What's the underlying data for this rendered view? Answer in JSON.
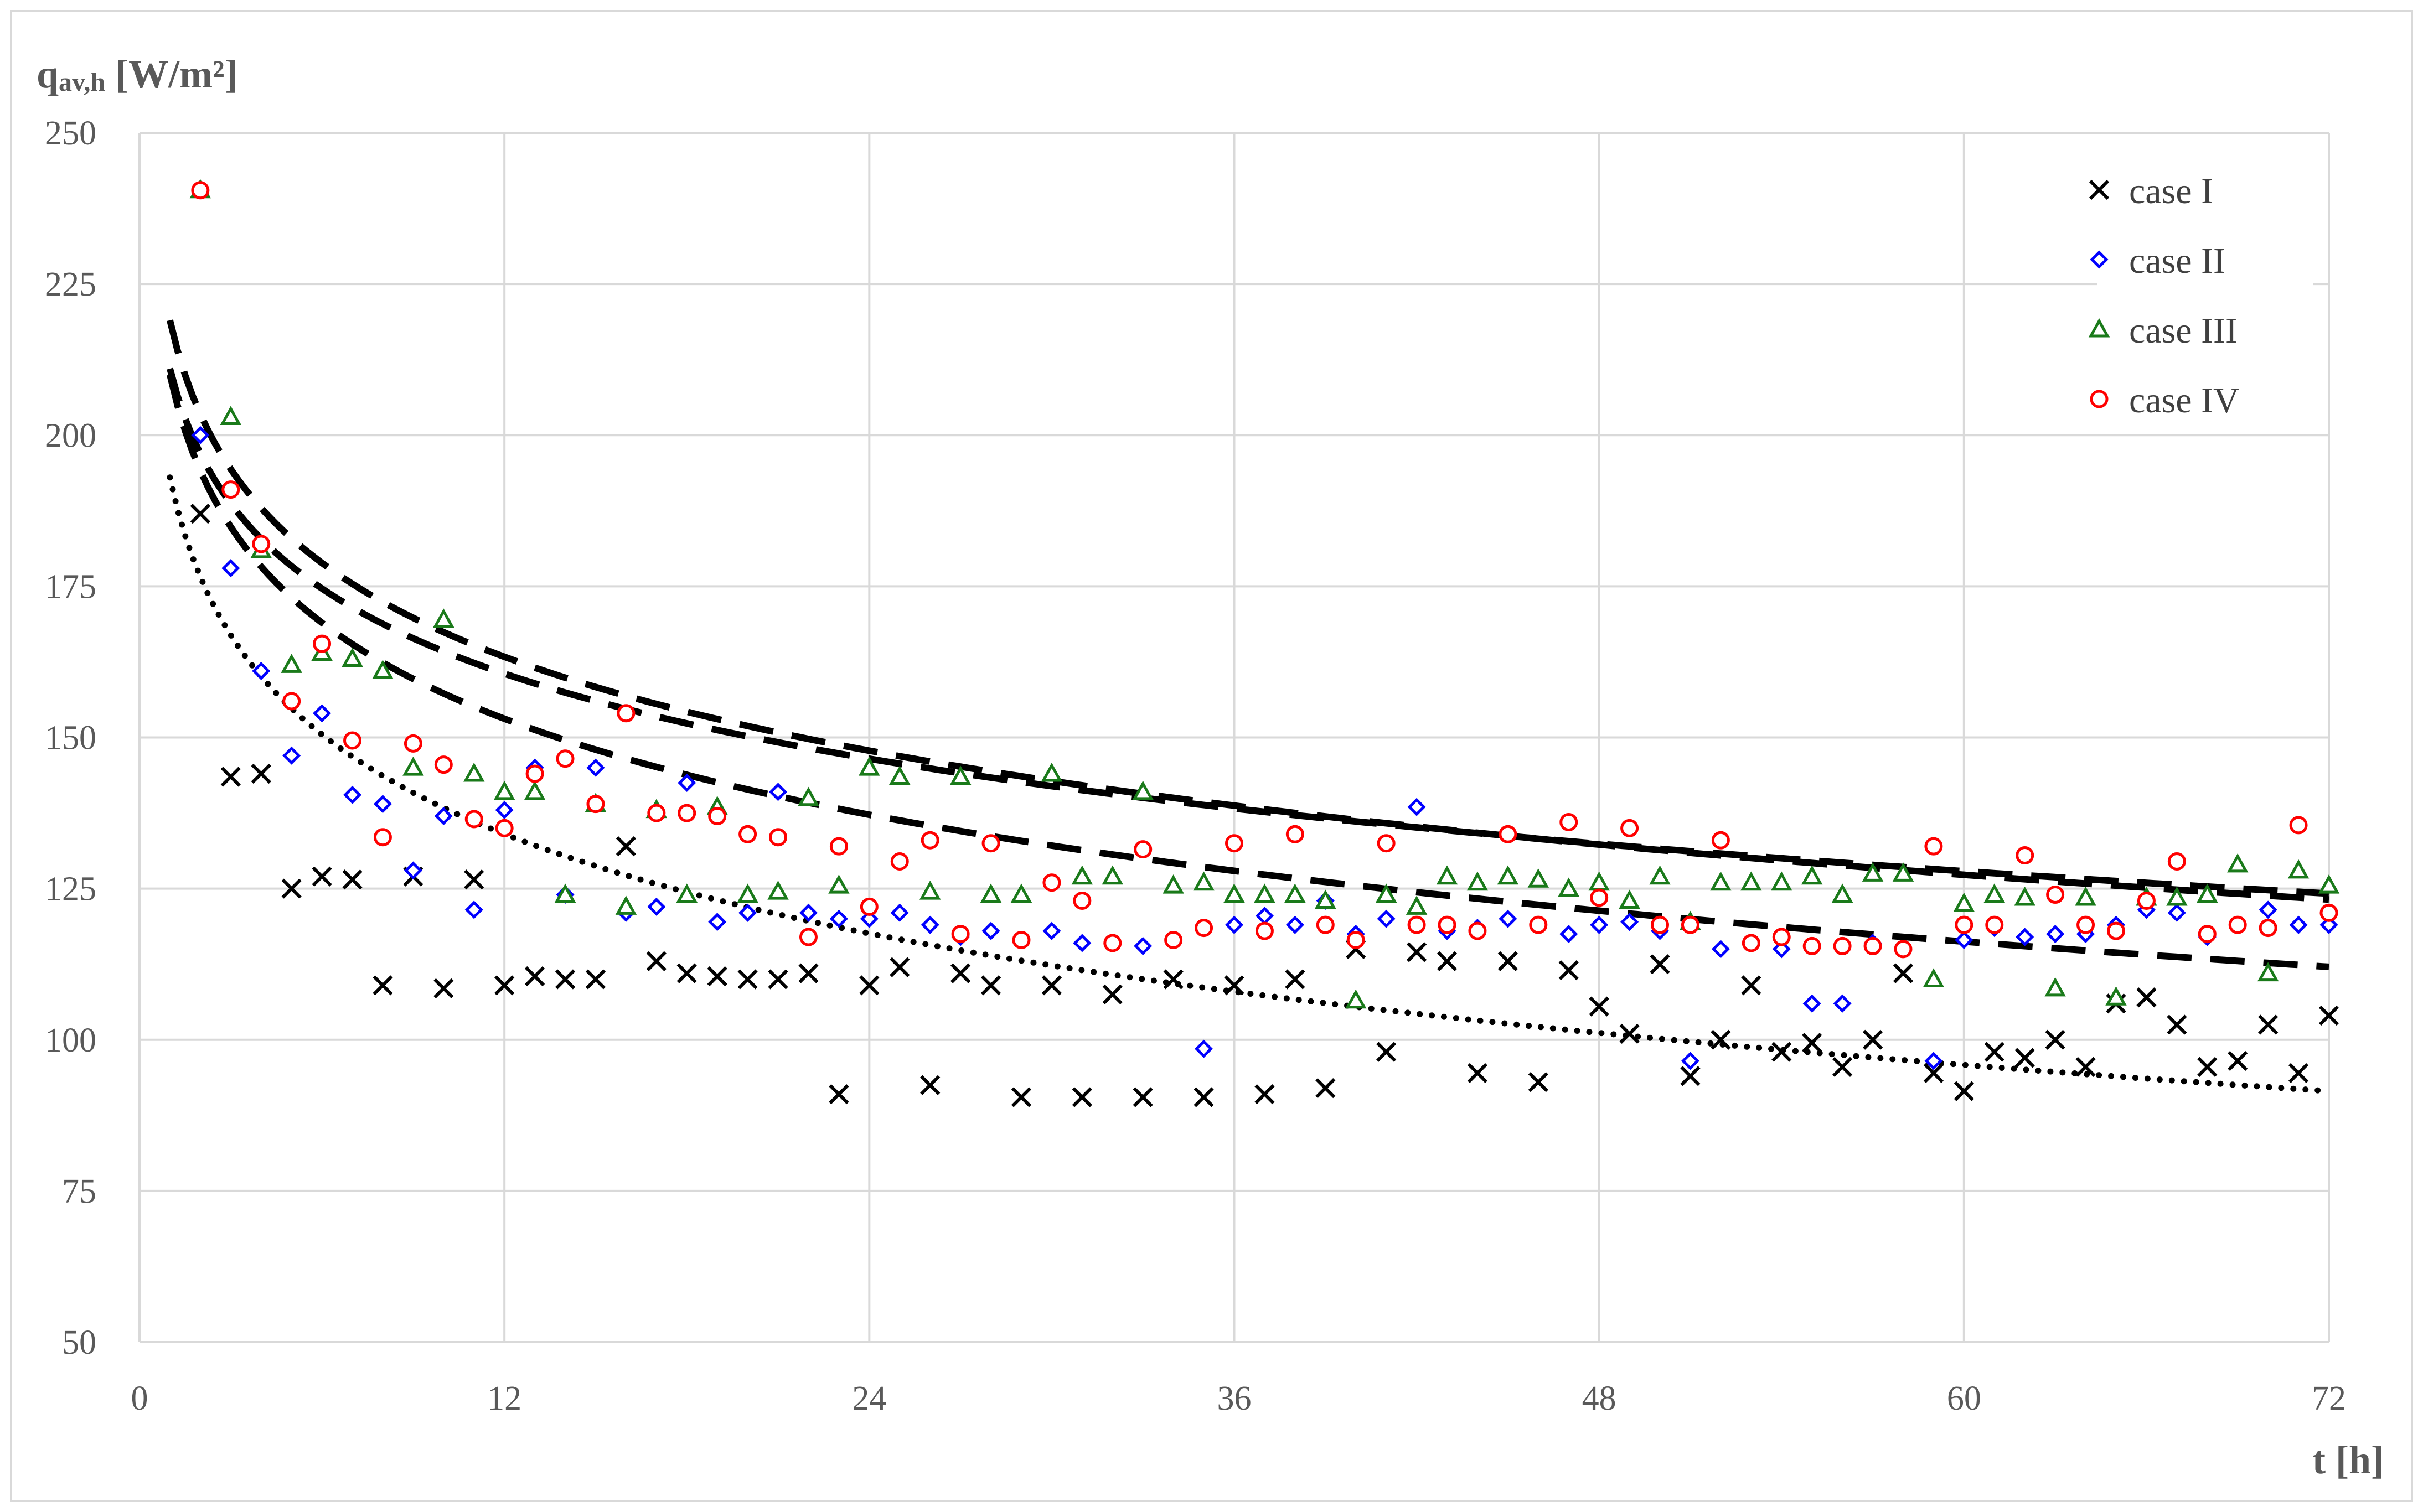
{
  "chart_data": {
    "type": "scatter",
    "title": "",
    "ylabel": {
      "main": "q",
      "sub": "av,h",
      "unit": " [W/m²]"
    },
    "xlabel": "t [h]",
    "xlim": [
      0,
      72
    ],
    "ylim": [
      50,
      250
    ],
    "xticks": [
      0,
      12,
      24,
      36,
      48,
      60,
      72
    ],
    "yticks": [
      50,
      75,
      100,
      125,
      150,
      175,
      200,
      225,
      250
    ],
    "grid": true,
    "legend_position": "top-right",
    "series": [
      {
        "name": "case I",
        "marker": "cross",
        "color": "#000000",
        "points": [
          [
            2,
            187
          ],
          [
            3,
            143.5
          ],
          [
            4,
            144
          ],
          [
            5,
            125
          ],
          [
            6,
            127
          ],
          [
            7,
            126.5
          ],
          [
            8,
            109
          ],
          [
            9,
            127
          ],
          [
            10,
            108.5
          ],
          [
            11,
            126.5
          ],
          [
            12,
            109
          ],
          [
            13,
            110.5
          ],
          [
            14,
            110
          ],
          [
            15,
            110
          ],
          [
            16,
            132
          ],
          [
            17,
            113
          ],
          [
            18,
            111
          ],
          [
            19,
            110.5
          ],
          [
            20,
            110
          ],
          [
            21,
            110
          ],
          [
            22,
            111
          ],
          [
            23,
            91
          ],
          [
            24,
            109
          ],
          [
            25,
            112
          ],
          [
            26,
            92.5
          ],
          [
            27,
            111
          ],
          [
            28,
            109
          ],
          [
            29,
            90.5
          ],
          [
            30,
            109
          ],
          [
            31,
            90.5
          ],
          [
            32,
            107.5
          ],
          [
            33,
            90.5
          ],
          [
            34,
            110
          ],
          [
            35,
            90.5
          ],
          [
            36,
            109
          ],
          [
            37,
            91
          ],
          [
            38,
            110
          ],
          [
            39,
            92
          ],
          [
            40,
            115
          ],
          [
            41,
            98
          ],
          [
            42,
            114.5
          ],
          [
            43,
            113
          ],
          [
            44,
            94.5
          ],
          [
            45,
            113
          ],
          [
            46,
            93
          ],
          [
            47,
            111.5
          ],
          [
            48,
            105.5
          ],
          [
            49,
            101
          ],
          [
            50,
            112.5
          ],
          [
            51,
            94
          ],
          [
            52,
            100
          ],
          [
            53,
            109
          ],
          [
            54,
            98
          ],
          [
            55,
            99.5
          ],
          [
            56,
            95.5
          ],
          [
            57,
            100
          ],
          [
            58,
            111
          ],
          [
            59,
            94.5
          ],
          [
            60,
            91.5
          ],
          [
            61,
            98
          ],
          [
            62,
            97
          ],
          [
            63,
            100
          ],
          [
            64,
            95.5
          ],
          [
            65,
            106
          ],
          [
            66,
            107
          ],
          [
            67,
            102.5
          ],
          [
            68,
            95.5
          ],
          [
            69,
            96.5
          ],
          [
            70,
            102.5
          ],
          [
            71,
            94.5
          ],
          [
            72,
            104
          ]
        ]
      },
      {
        "name": "case II",
        "marker": "diamond",
        "color": "#0000ff",
        "points": [
          [
            2,
            200
          ],
          [
            3,
            178
          ],
          [
            4,
            161
          ],
          [
            5,
            147
          ],
          [
            6,
            154
          ],
          [
            7,
            140.5
          ],
          [
            8,
            139
          ],
          [
            9,
            128
          ],
          [
            10,
            137
          ],
          [
            11,
            121.5
          ],
          [
            12,
            138
          ],
          [
            13,
            145
          ],
          [
            14,
            124
          ],
          [
            15,
            145
          ],
          [
            16,
            121
          ],
          [
            17,
            122
          ],
          [
            18,
            142.5
          ],
          [
            19,
            119.5
          ],
          [
            20,
            121
          ],
          [
            21,
            141
          ],
          [
            22,
            121
          ],
          [
            23,
            120
          ],
          [
            24,
            120
          ],
          [
            25,
            121
          ],
          [
            26,
            119
          ],
          [
            27,
            117
          ],
          [
            28,
            118
          ],
          [
            29,
            116.5
          ],
          [
            30,
            118
          ],
          [
            31,
            116
          ],
          [
            32,
            116
          ],
          [
            33,
            115.5
          ],
          [
            34,
            116.5
          ],
          [
            35,
            98.5
          ],
          [
            36,
            119
          ],
          [
            37,
            120.5
          ],
          [
            38,
            119
          ],
          [
            39,
            123
          ],
          [
            40,
            117.5
          ],
          [
            41,
            120
          ],
          [
            42,
            138.5
          ],
          [
            43,
            118
          ],
          [
            44,
            118.5
          ],
          [
            45,
            120
          ],
          [
            46,
            119
          ],
          [
            47,
            117.5
          ],
          [
            48,
            119
          ],
          [
            49,
            119.5
          ],
          [
            50,
            118
          ],
          [
            51,
            96.5
          ],
          [
            52,
            115
          ],
          [
            53,
            116
          ],
          [
            54,
            115
          ],
          [
            55,
            106
          ],
          [
            56,
            106
          ],
          [
            57,
            116
          ],
          [
            58,
            115
          ],
          [
            59,
            96.5
          ],
          [
            60,
            116.5
          ],
          [
            61,
            118.5
          ],
          [
            62,
            117
          ],
          [
            63,
            117.5
          ],
          [
            64,
            117.5
          ],
          [
            65,
            119
          ],
          [
            66,
            121.5
          ],
          [
            67,
            121
          ],
          [
            68,
            117
          ],
          [
            69,
            119
          ],
          [
            70,
            121.5
          ],
          [
            71,
            119
          ],
          [
            72,
            119
          ]
        ]
      },
      {
        "name": "case III",
        "marker": "triangle",
        "color": "#1a7a1a",
        "points": [
          [
            2,
            240.5
          ],
          [
            3,
            203
          ],
          [
            4,
            181
          ],
          [
            5,
            162
          ],
          [
            6,
            164
          ],
          [
            7,
            163
          ],
          [
            8,
            161
          ],
          [
            9,
            145
          ],
          [
            10,
            169.5
          ],
          [
            11,
            144
          ],
          [
            12,
            141
          ],
          [
            13,
            141
          ],
          [
            14,
            124
          ],
          [
            15,
            139
          ],
          [
            16,
            122
          ],
          [
            17,
            138
          ],
          [
            18,
            124
          ],
          [
            19,
            138.5
          ],
          [
            20,
            124
          ],
          [
            21,
            124.5
          ],
          [
            22,
            140
          ],
          [
            23,
            125.5
          ],
          [
            24,
            145
          ],
          [
            25,
            143.5
          ],
          [
            26,
            124.5
          ],
          [
            27,
            143.5
          ],
          [
            28,
            124
          ],
          [
            29,
            124
          ],
          [
            30,
            144
          ],
          [
            31,
            127
          ],
          [
            32,
            127
          ],
          [
            33,
            141
          ],
          [
            34,
            125.5
          ],
          [
            35,
            126
          ],
          [
            36,
            124
          ],
          [
            37,
            124
          ],
          [
            38,
            124
          ],
          [
            39,
            123
          ],
          [
            40,
            106.5
          ],
          [
            41,
            124
          ],
          [
            42,
            122
          ],
          [
            43,
            127
          ],
          [
            44,
            126
          ],
          [
            45,
            127
          ],
          [
            46,
            126.5
          ],
          [
            47,
            125
          ],
          [
            48,
            126
          ],
          [
            49,
            123
          ],
          [
            50,
            127
          ],
          [
            51,
            119.5
          ],
          [
            52,
            126
          ],
          [
            53,
            126
          ],
          [
            54,
            126
          ],
          [
            55,
            127
          ],
          [
            56,
            124
          ],
          [
            57,
            127.5
          ],
          [
            58,
            127.5
          ],
          [
            59,
            110
          ],
          [
            60,
            122.5
          ],
          [
            61,
            124
          ],
          [
            62,
            123.5
          ],
          [
            63,
            108.5
          ],
          [
            64,
            123.5
          ],
          [
            65,
            107
          ],
          [
            66,
            123.5
          ],
          [
            67,
            123.5
          ],
          [
            68,
            124
          ],
          [
            69,
            129
          ],
          [
            70,
            111
          ],
          [
            71,
            128
          ],
          [
            72,
            125.5
          ]
        ]
      },
      {
        "name": "case IV",
        "marker": "circle",
        "color": "#ff0000",
        "points": [
          [
            2,
            240.5
          ],
          [
            3,
            191
          ],
          [
            4,
            182
          ],
          [
            5,
            156
          ],
          [
            6,
            165.5
          ],
          [
            7,
            149.5
          ],
          [
            8,
            133.5
          ],
          [
            9,
            149
          ],
          [
            10,
            145.5
          ],
          [
            11,
            136.5
          ],
          [
            12,
            135
          ],
          [
            13,
            144
          ],
          [
            14,
            146.5
          ],
          [
            15,
            139
          ],
          [
            16,
            154
          ],
          [
            17,
            137.5
          ],
          [
            18,
            137.5
          ],
          [
            19,
            137
          ],
          [
            20,
            134
          ],
          [
            21,
            133.5
          ],
          [
            22,
            117
          ],
          [
            23,
            132
          ],
          [
            24,
            122
          ],
          [
            25,
            129.5
          ],
          [
            26,
            133
          ],
          [
            27,
            117.5
          ],
          [
            28,
            132.5
          ],
          [
            29,
            116.5
          ],
          [
            30,
            126
          ],
          [
            31,
            123
          ],
          [
            32,
            116
          ],
          [
            33,
            131.5
          ],
          [
            34,
            116.5
          ],
          [
            35,
            118.5
          ],
          [
            36,
            132.5
          ],
          [
            37,
            118
          ],
          [
            38,
            134
          ],
          [
            39,
            119
          ],
          [
            40,
            116.5
          ],
          [
            41,
            132.5
          ],
          [
            42,
            119
          ],
          [
            43,
            119
          ],
          [
            44,
            118
          ],
          [
            45,
            134
          ],
          [
            46,
            119
          ],
          [
            47,
            136
          ],
          [
            48,
            123.5
          ],
          [
            49,
            135
          ],
          [
            50,
            119
          ],
          [
            51,
            119
          ],
          [
            52,
            133
          ],
          [
            53,
            116
          ],
          [
            54,
            117
          ],
          [
            55,
            115.5
          ],
          [
            56,
            115.5
          ],
          [
            57,
            115.5
          ],
          [
            58,
            115
          ],
          [
            59,
            132
          ],
          [
            60,
            119
          ],
          [
            61,
            119
          ],
          [
            62,
            130.5
          ],
          [
            63,
            124
          ],
          [
            64,
            119
          ],
          [
            65,
            118
          ],
          [
            66,
            123
          ],
          [
            67,
            129.5
          ],
          [
            68,
            117.5
          ],
          [
            69,
            119
          ],
          [
            70,
            118.5
          ],
          [
            71,
            135.5
          ],
          [
            72,
            121
          ]
        ]
      }
    ],
    "trendlines": [
      {
        "style": "dotted",
        "formula": "y = 193 - 23.73 ln(x)",
        "x_range": [
          1,
          72
        ]
      },
      {
        "style": "dashed",
        "formula": "y = 210 - 22.9 ln(x)",
        "x_range": [
          1,
          72
        ]
      },
      {
        "style": "dashed",
        "formula": "y = 211 - 20.3 ln(x)",
        "x_range": [
          1,
          72
        ]
      },
      {
        "style": "dashed",
        "formula": "y = 219 - 22.4 ln(x)",
        "x_range": [
          1,
          72
        ]
      }
    ]
  }
}
